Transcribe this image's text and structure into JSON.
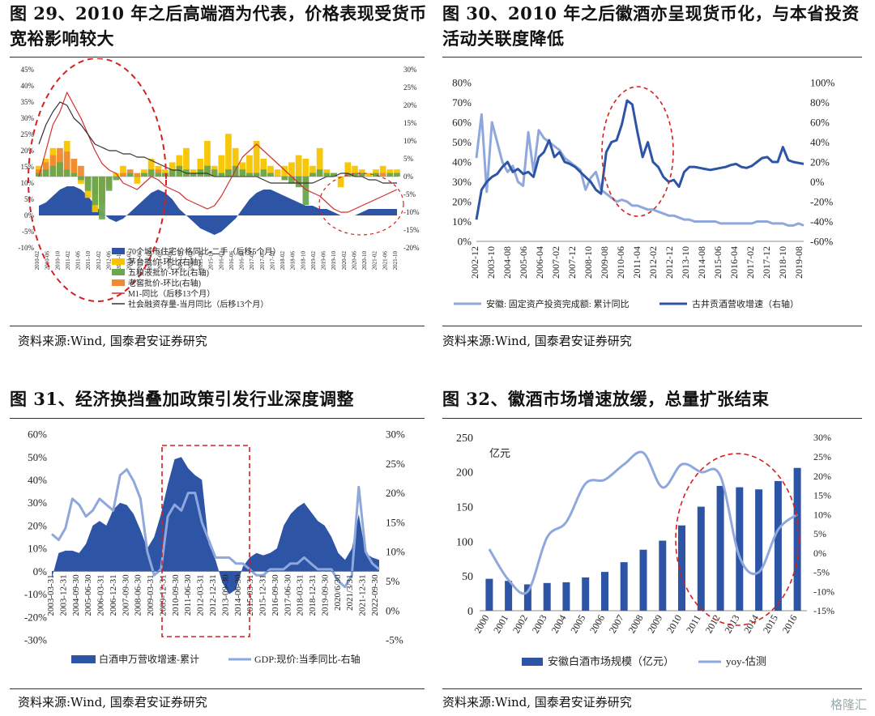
{
  "panels": {
    "p29": {
      "title_line1": "图 29、2010 年之后高端酒为代表，价格表现受货币",
      "title_line2": "宽裕影响较大",
      "source": "资料来源:Wind, 国泰君安证券研究"
    },
    "p30": {
      "title_line1": "图 30、2010 年之后徽酒亦呈现货币化，与本省投资",
      "title_line2": "活动关联度降低",
      "source": "资料来源:Wind, 国泰君安证券研究"
    },
    "p31": {
      "title": "图 31、经济换挡叠加政策引发行业深度调整",
      "source": "资料来源:Wind, 国泰君安证券研究"
    },
    "p32": {
      "title": "图 32、徽酒市场增速放缓，总量扩张结束",
      "source": "资料来源:Wind, 国泰君安证券研究"
    }
  },
  "watermark": "格隆汇",
  "colors": {
    "dark_blue": "#2e54a6",
    "light_blue": "#8fa8dc",
    "yellow": "#f5c400",
    "green": "#6aa84f",
    "orange": "#ef8a32",
    "red": "#d03030",
    "black": "#333333",
    "annot": "#d62020"
  },
  "chart_data": [
    {
      "id": "fig29",
      "type": "area",
      "yleft_ticks": [
        "45%",
        "40%",
        "35%",
        "30%",
        "25%",
        "20%",
        "15%",
        "10%",
        "5%",
        "0%",
        "-5%",
        "-10%"
      ],
      "yright_ticks": [
        "30%",
        "25%",
        "20%",
        "15%",
        "10%",
        "5%",
        "0%",
        "-5%",
        "-10%",
        "-15%",
        "-20%"
      ],
      "ylim_left": [
        -10,
        45
      ],
      "ylim_right": [
        -20,
        30
      ],
      "x_ticks": [
        "2010-02",
        "2010-06",
        "2010-10",
        "2011-02",
        "2011-06",
        "2011-10",
        "2012-02",
        "2012-06",
        "2012-10",
        "2013-02",
        "2013-06",
        "2013-10",
        "2014-02",
        "2014-06",
        "2014-10",
        "2015-02",
        "2015-06",
        "2015-10",
        "2016-02",
        "2016-06",
        "2016-10",
        "2017-02",
        "2017-06",
        "2017-10",
        "2018-02",
        "2018-06",
        "2018-10",
        "2019-02",
        "2019-06",
        "2019-10",
        "2020-02",
        "2020-06",
        "2020-10",
        "2021-02",
        "2021-06",
        "2021-10"
      ],
      "legend": [
        "70个城市住宅价格同比-二手（后移5个月）",
        "茅台批价-环比(右轴)",
        "五粮液批价-环比(右轴)",
        "老窖批价-环比(右轴)",
        "M1-同比（后移13个月）",
        "社会融资存量-当月同比（后移13个月）"
      ],
      "series": [
        {
          "name": "70个城市住宅价格同比-二手（后移5个月）",
          "axis": "left",
          "values": [
            3,
            4,
            6,
            8,
            9,
            9,
            8,
            6,
            3,
            1,
            -1,
            -2,
            -1,
            1,
            3,
            5,
            7,
            8,
            7,
            5,
            2,
            0,
            -2,
            -4,
            -5,
            -6,
            -5,
            -3,
            -1,
            2,
            5,
            7,
            8,
            8,
            7,
            6,
            5,
            4,
            3,
            3,
            2,
            2,
            1,
            0,
            0,
            0,
            1,
            2,
            2,
            2,
            2,
            2
          ]
        },
        {
          "name": "茅台批价-环比(右轴)",
          "axis": "right",
          "values": [
            3,
            5,
            8,
            6,
            10,
            4,
            -2,
            -6,
            -10,
            -8,
            -3,
            1,
            3,
            0,
            -2,
            2,
            5,
            3,
            2,
            4,
            6,
            8,
            2,
            5,
            10,
            3,
            6,
            12,
            8,
            4,
            6,
            10,
            5,
            3,
            2,
            3,
            4,
            6,
            5,
            3,
            8,
            2,
            0,
            -3,
            4,
            3,
            2,
            1,
            2,
            3,
            2,
            2
          ]
        },
        {
          "name": "五粮液批价-环比(右轴)",
          "axis": "right",
          "values": [
            1,
            2,
            3,
            4,
            2,
            1,
            -1,
            -4,
            -8,
            -12,
            -4,
            -1,
            0,
            1,
            0,
            1,
            2,
            1,
            1,
            2,
            3,
            2,
            1,
            2,
            3,
            2,
            1,
            2,
            3,
            2,
            1,
            1,
            2,
            1,
            0,
            -1,
            -2,
            -3,
            -8,
            1,
            2,
            1,
            1,
            0,
            1,
            1,
            1,
            0,
            1,
            0,
            1,
            1
          ]
        },
        {
          "name": "老窖批价-环比(右轴)",
          "axis": "right",
          "values": [
            2,
            4,
            6,
            8,
            7,
            5,
            3,
            -2,
            -5,
            -7,
            -3,
            0,
            1,
            2,
            1,
            1,
            1,
            2,
            1,
            1,
            2,
            1,
            1,
            2,
            3,
            1,
            1,
            2,
            2,
            1,
            1,
            1,
            1,
            0,
            0,
            -1,
            -1,
            -2,
            -3,
            1,
            1,
            0,
            1,
            0,
            1,
            0,
            1,
            0,
            0,
            1,
            0,
            0
          ]
        },
        {
          "name": "M1-同比（后移13个月）",
          "axis": "left",
          "values": [
            12,
            20,
            28,
            32,
            38,
            34,
            30,
            25,
            20,
            16,
            14,
            13,
            10,
            9,
            8,
            10,
            12,
            11,
            9,
            8,
            7,
            5,
            4,
            3,
            2,
            3,
            6,
            10,
            14,
            18,
            20,
            22,
            20,
            18,
            16,
            14,
            12,
            10,
            8,
            7,
            6,
            4,
            2,
            1,
            1,
            2,
            3,
            4,
            5,
            6,
            7,
            8
          ]
        },
        {
          "name": "社会融资存量-当月同比（后移13个月）",
          "axis": "left",
          "values": [
            22,
            28,
            32,
            35,
            34,
            30,
            28,
            25,
            22,
            21,
            20,
            20,
            19,
            19,
            18,
            18,
            17,
            16,
            15,
            14,
            14,
            13,
            13,
            13,
            13,
            12,
            12,
            12,
            12,
            12,
            12,
            12,
            11,
            10,
            10,
            10,
            10,
            10,
            10,
            10,
            11,
            12,
            12,
            13,
            13,
            12,
            12,
            11,
            11,
            10,
            10,
            10
          ]
        }
      ]
    },
    {
      "id": "fig30",
      "type": "line",
      "yleft_ticks": [
        "80%",
        "70%",
        "60%",
        "50%",
        "40%",
        "30%",
        "20%",
        "10%",
        "0%"
      ],
      "yright_ticks": [
        "100%",
        "80%",
        "60%",
        "40%",
        "20%",
        "0%",
        "-20%",
        "-40%",
        "-60%"
      ],
      "ylim_left": [
        0,
        80
      ],
      "ylim_right": [
        -60,
        100
      ],
      "x_ticks": [
        "2002-12",
        "2003-10",
        "2004-08",
        "2005-06",
        "2006-04",
        "2007-02",
        "2007-12",
        "2008-10",
        "2009-08",
        "2010-06",
        "2011-04",
        "2012-02",
        "2012-12",
        "2013-10",
        "2014-08",
        "2015-06",
        "2016-04",
        "2017-02",
        "2017-12",
        "2018-10",
        "2019-08"
      ],
      "legend": [
        "安徽: 固定资产投资完成额: 累计同比",
        "古井贡酒营收增速（右轴）"
      ],
      "series": [
        {
          "name": "安徽: 固定资产投资完成额: 累计同比",
          "axis": "left",
          "values": [
            42,
            64,
            25,
            60,
            50,
            40,
            35,
            38,
            30,
            28,
            55,
            35,
            56,
            52,
            50,
            48,
            46,
            42,
            40,
            38,
            36,
            26,
            32,
            35,
            26,
            24,
            22,
            20,
            21,
            20,
            18,
            18,
            17,
            16,
            16,
            15,
            14,
            13,
            13,
            12,
            11,
            11,
            10,
            10,
            10,
            10,
            10,
            9,
            9,
            9,
            9,
            9,
            9,
            9,
            10,
            10,
            10,
            9,
            9,
            9,
            8,
            8,
            9,
            8
          ]
        },
        {
          "name": "古井贡酒营收增速（右轴）",
          "axis": "right",
          "values": [
            -38,
            -8,
            0,
            5,
            8,
            15,
            20,
            10,
            13,
            8,
            10,
            5,
            25,
            30,
            42,
            25,
            30,
            20,
            18,
            15,
            10,
            5,
            0,
            -8,
            -12,
            30,
            40,
            42,
            58,
            82,
            78,
            50,
            25,
            40,
            20,
            15,
            5,
            0,
            2,
            -5,
            10,
            15,
            15,
            14,
            13,
            12,
            13,
            14,
            15,
            17,
            18,
            15,
            14,
            16,
            20,
            24,
            25,
            20,
            20,
            35,
            22,
            20,
            19,
            18
          ]
        }
      ]
    },
    {
      "id": "fig31",
      "type": "area",
      "yleft_ticks": [
        "60%",
        "50%",
        "40%",
        "30%",
        "20%",
        "10%",
        "0%",
        "-10%",
        "-20%",
        "-30%"
      ],
      "yright_ticks": [
        "30%",
        "25%",
        "20%",
        "15%",
        "10%",
        "5%",
        "0%",
        "-5%"
      ],
      "ylim_left": [
        -30,
        60
      ],
      "ylim_right": [
        -5,
        30
      ],
      "x_ticks": [
        "2003-03-31",
        "2003-12-31",
        "2004-09-30",
        "2005-06-30",
        "2006-03-31",
        "2006-12-31",
        "2007-09-30",
        "2008-06-30",
        "2009-03-31",
        "2009-12-31",
        "2010-09-30",
        "2011-06-30",
        "2012-03-31",
        "2012-12-31",
        "2013-09-30",
        "2014-06-30",
        "2015-03-31",
        "2015-12-31",
        "2016-09-30",
        "2017-06-30",
        "2018-03-31",
        "2018-12-31",
        "2019-09-30",
        "2020/6/30",
        "2021/3/31",
        "2021-12-31",
        "2022-09-30"
      ],
      "legend": [
        "白酒申万营收增速-累计",
        "GDP:现价:当季同比-右轴"
      ],
      "series": [
        {
          "name": "白酒申万营收增速-累计",
          "axis": "left",
          "values": [
            -3,
            8,
            9,
            9,
            8,
            12,
            20,
            22,
            20,
            27,
            30,
            29,
            25,
            18,
            10,
            15,
            25,
            38,
            49,
            50,
            45,
            42,
            40,
            12,
            5,
            -5,
            -10,
            -8,
            2,
            6,
            8,
            7,
            8,
            10,
            20,
            25,
            28,
            30,
            26,
            22,
            20,
            15,
            8,
            5,
            10,
            25,
            8,
            6,
            5
          ]
        },
        {
          "name": "GDP:现价:当季同比-右轴",
          "axis": "right",
          "values": [
            13,
            12,
            14,
            19,
            18,
            16,
            17,
            19,
            18,
            17,
            23,
            24,
            22,
            19,
            10,
            6,
            7,
            16,
            18,
            17,
            20,
            20,
            15,
            12,
            9,
            9,
            9,
            8,
            8,
            7,
            6,
            6,
            7,
            7,
            7,
            8,
            8,
            9,
            8,
            7,
            7,
            7,
            5,
            4,
            6,
            21,
            10,
            8,
            7
          ]
        }
      ]
    },
    {
      "id": "fig32",
      "type": "bar",
      "yleft_ticks": [
        "250",
        "200",
        "150",
        "100",
        "50",
        "0"
      ],
      "yright_ticks": [
        "30%",
        "25%",
        "20%",
        "15%",
        "10%",
        "5%",
        "0%",
        "-5%",
        "-10%",
        "-15%"
      ],
      "ylim_left": [
        0,
        250
      ],
      "ylim_right": [
        -15,
        30
      ],
      "unit_label": "亿元",
      "categories": [
        "2000",
        "2001",
        "2002",
        "2003",
        "2004",
        "2005",
        "2006",
        "2007",
        "2008",
        "2009",
        "2010",
        "2011",
        "2012",
        "2013",
        "2014",
        "2015",
        "2016"
      ],
      "legend": [
        "安徽白酒市场规模（亿元）",
        "yoy-估测"
      ],
      "series": [
        {
          "name": "安徽白酒市场规模（亿元）",
          "axis": "left",
          "values": [
            46,
            43,
            38,
            40,
            41,
            48,
            56,
            70,
            88,
            101,
            123,
            150,
            180,
            178,
            175,
            187,
            206
          ]
        },
        {
          "name": "yoy-估测",
          "axis": "right",
          "values": [
            1,
            -7,
            -10,
            4,
            8,
            18,
            19,
            23,
            26,
            17,
            23,
            21,
            20,
            -1,
            -5,
            6,
            10
          ]
        }
      ]
    }
  ]
}
